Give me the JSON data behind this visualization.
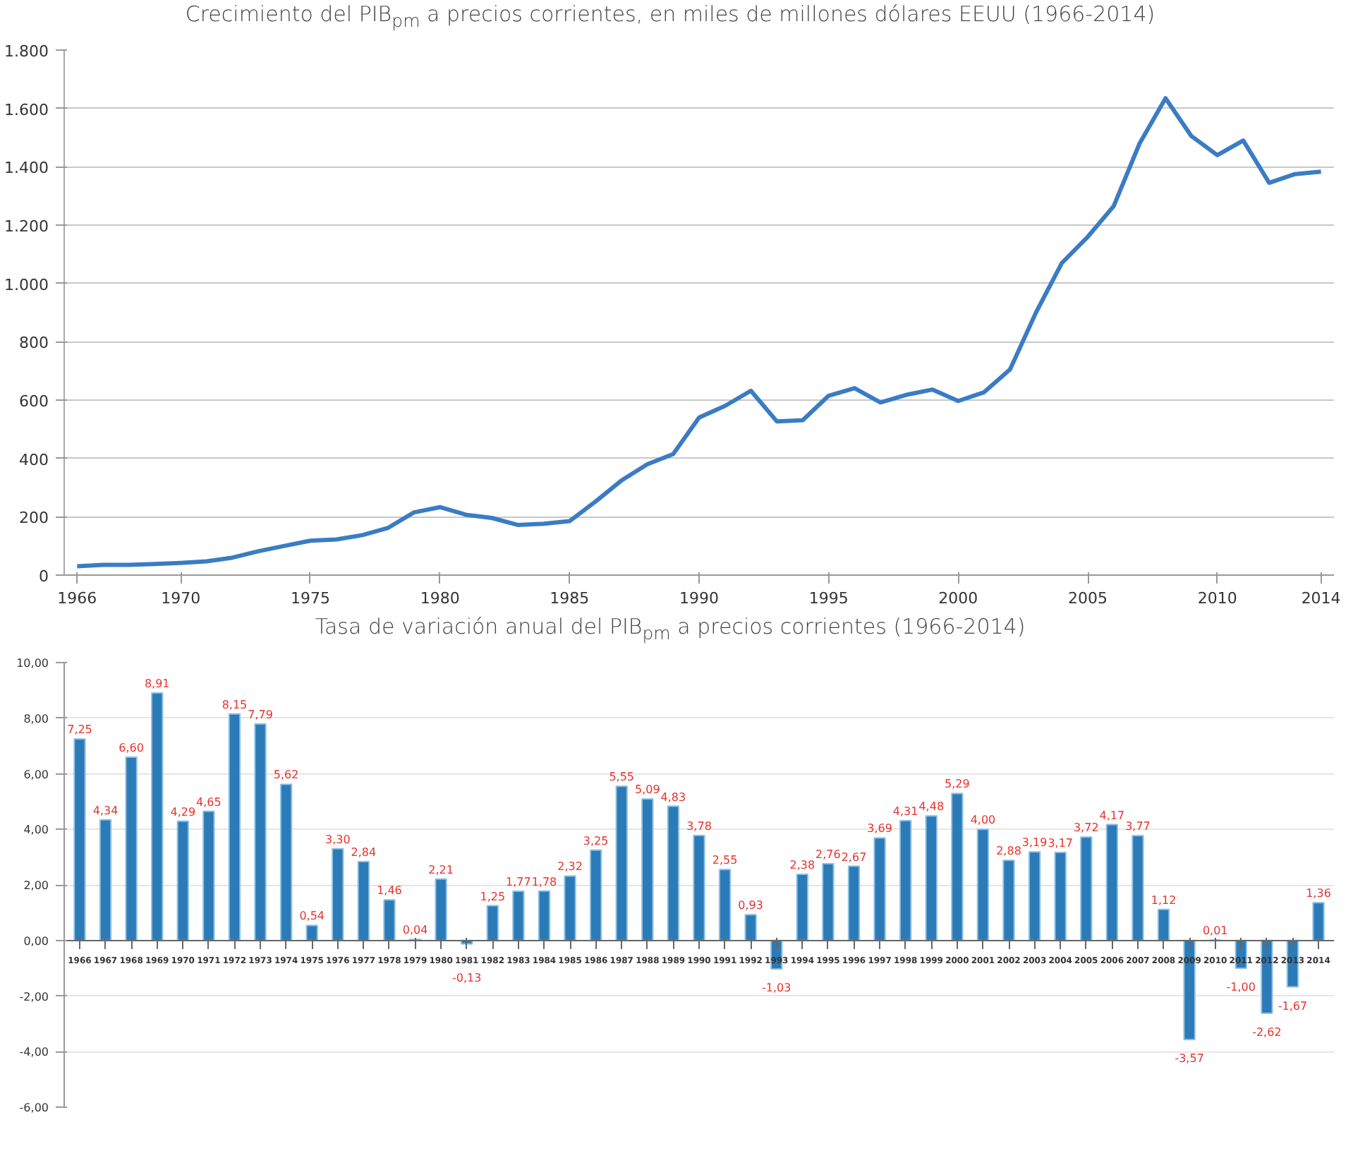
{
  "chart_data": [
    {
      "type": "line",
      "title": "Crecimiento del PIB$_{pm}$ a precios corrientes, en miles de millones dólares EEUU (1966-2014)",
      "x": [
        1966,
        1967,
        1968,
        1969,
        1970,
        1971,
        1972,
        1973,
        1974,
        1975,
        1976,
        1977,
        1978,
        1979,
        1980,
        1981,
        1982,
        1983,
        1984,
        1985,
        1986,
        1987,
        1988,
        1989,
        1990,
        1991,
        1992,
        1993,
        1994,
        1995,
        1996,
        1997,
        1998,
        1999,
        2000,
        2001,
        2002,
        2003,
        2004,
        2005,
        2006,
        2007,
        2008,
        2009,
        2010,
        2011,
        2012,
        2013,
        2014
      ],
      "series": [
        {
          "color": "#3a7cc4",
          "values": [
            30,
            35,
            35,
            38,
            42,
            47,
            60,
            82,
            100,
            118,
            122,
            137,
            162,
            215,
            233,
            207,
            196,
            172,
            176,
            185,
            252,
            324,
            380,
            415,
            540,
            580,
            632,
            527,
            531,
            615,
            641,
            592,
            618,
            636,
            597,
            627,
            705,
            900,
            1070,
            1160,
            1265,
            1480,
            1635,
            1505,
            1440,
            1490,
            1345,
            1375,
            1383
          ]
        }
      ],
      "xlim": [
        1965.5,
        2014.5
      ],
      "xticks": [
        1966,
        1970,
        1975,
        1980,
        1985,
        1990,
        1995,
        2000,
        2005,
        2010,
        2014
      ],
      "ylim": [
        0,
        1800
      ],
      "yticks": [
        0,
        200,
        400,
        600,
        800,
        {
          "value": 1000,
          "label": "1.000"
        },
        {
          "value": 1200,
          "label": "1.200"
        },
        {
          "value": 1400,
          "label": "1.400"
        },
        {
          "value": 1600,
          "label": "1.600"
        },
        {
          "value": 1800,
          "label": "1.800"
        }
      ],
      "grid": "y",
      "marker": "none",
      "line_style": "solid"
    },
    {
      "type": "bar",
      "title": "Tasa de variación anual del PIB$_{pm}$ a precios corrientes (1966-2014)",
      "categories": [
        "1966",
        "1967",
        "1968",
        "1969",
        "1970",
        "1971",
        "1972",
        "1973",
        "1974",
        "1975",
        "1976",
        "1977",
        "1978",
        "1979",
        "1980",
        "1981",
        "1982",
        "1983",
        "1984",
        "1985",
        "1986",
        "1987",
        "1988",
        "1989",
        "1990",
        "1991",
        "1992",
        "1993",
        "1994",
        "1995",
        "1996",
        "1997",
        "1998",
        "1999",
        "2000",
        "2001",
        "2002",
        "2003",
        "2004",
        "2005",
        "2006",
        "2007",
        "2008",
        "2009",
        "2010",
        "2011",
        "2012",
        "2013",
        "2014"
      ],
      "values": [
        7.25,
        4.34,
        6.6,
        8.91,
        4.29,
        4.65,
        8.15,
        7.79,
        5.62,
        0.54,
        3.3,
        2.84,
        1.46,
        0.04,
        2.21,
        -0.13,
        1.25,
        1.77,
        1.78,
        2.32,
        3.25,
        5.55,
        5.09,
        4.83,
        3.78,
        2.55,
        0.93,
        -1.03,
        2.38,
        2.76,
        2.67,
        3.69,
        4.31,
        4.48,
        5.29,
        4.0,
        2.88,
        3.19,
        3.17,
        3.72,
        4.17,
        3.77,
        1.12,
        -3.57,
        0.01,
        -1.0,
        -2.62,
        -1.67,
        1.36
      ],
      "value_labels": [
        "7,25",
        "4,34",
        "6,60",
        "8,91",
        "4,29",
        "4,65",
        "8,15",
        "7,79",
        "5,62",
        "0,54",
        "3,30",
        "2,84",
        "1,46",
        "0,04",
        "2,21",
        "-0,13",
        "1,25",
        "1,77",
        "1,78",
        "2,32",
        "3,25",
        "5,55",
        "5,09",
        "4,83",
        "3,78",
        "2,55",
        "0,93",
        "-1,03",
        "2,38",
        "2,76",
        "2,67",
        "3,69",
        "4,31",
        "4,48",
        "5,29",
        "4,00",
        "2,88",
        "3,19",
        "3,17",
        "3,72",
        "4,17",
        "3,77",
        "1,12",
        "-3,57",
        "0,01",
        "-1,00",
        "-2,62",
        "-1,67",
        "1,36"
      ],
      "color": "#2b7bb9",
      "ylim": [
        -6,
        10
      ],
      "yticks": [
        {
          "value": -6,
          "label": "-6,00"
        },
        {
          "value": -4,
          "label": "-4,00"
        },
        {
          "value": -2,
          "label": "-2,00"
        },
        {
          "value": 0,
          "label": "0,00"
        },
        {
          "value": 2,
          "label": "2,00"
        },
        {
          "value": 4,
          "label": "4,00"
        },
        {
          "value": 6,
          "label": "6,00"
        },
        {
          "value": 8,
          "label": "8,00"
        },
        {
          "value": 10,
          "label": "10,00"
        }
      ],
      "grid": "y"
    }
  ]
}
